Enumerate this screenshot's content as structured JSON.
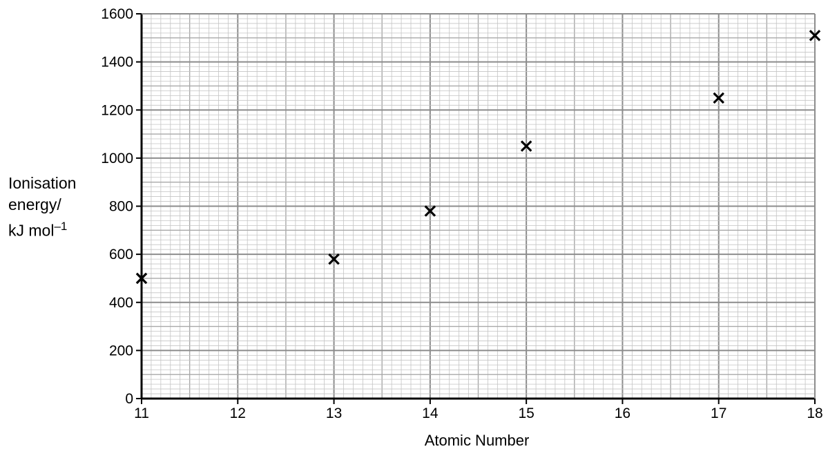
{
  "chart_data": {
    "type": "scatter",
    "title": "",
    "xlabel": "Atomic Number",
    "ylabel_lines": [
      "Ionisation",
      "energy/",
      "kJ mol–1"
    ],
    "ylabel": "Ionisation energy/ kJ mol–1",
    "xlim": [
      11,
      18
    ],
    "ylim": [
      0,
      1600
    ],
    "x_ticks": [
      "11",
      "12",
      "13",
      "14",
      "15",
      "16",
      "17",
      "18"
    ],
    "y_ticks": [
      "0",
      "200",
      "400",
      "600",
      "800",
      "1000",
      "1200",
      "1400",
      "1600"
    ],
    "grid": true,
    "marker": "x",
    "points": [
      {
        "x": 11,
        "y": 500
      },
      {
        "x": 13,
        "y": 580
      },
      {
        "x": 14,
        "y": 780
      },
      {
        "x": 15,
        "y": 1050
      },
      {
        "x": 17,
        "y": 1250
      },
      {
        "x": 18,
        "y": 1510
      }
    ]
  }
}
